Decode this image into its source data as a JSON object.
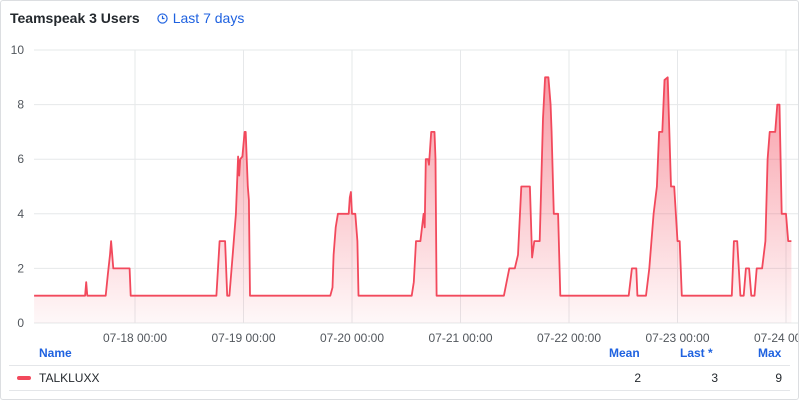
{
  "panel": {
    "title": "Teamspeak 3 Users",
    "time_range_label": "Last 7 days"
  },
  "legend": {
    "headers": {
      "name": "Name",
      "mean": "Mean",
      "last": "Last *",
      "max": "Max"
    },
    "series": [
      {
        "name": "TALKLUXX",
        "mean": "2",
        "last": "3",
        "max": "9",
        "color": "#f2495c"
      }
    ]
  },
  "chart_data": {
    "type": "area",
    "xlabels": [
      "07-18 00:00",
      "07-19 00:00",
      "07-20 00:00",
      "07-21 00:00",
      "07-22 00:00",
      "07-23 00:00",
      "07-24 00:00"
    ],
    "ylim": [
      0,
      10
    ],
    "yticks": [
      0,
      2,
      4,
      6,
      8,
      10
    ],
    "grid": true,
    "color": "#f2495c",
    "series": [
      {
        "name": "TALKLUXX",
        "points": [
          [
            -0.93,
            1
          ],
          [
            -0.46,
            1
          ],
          [
            -0.45,
            1.5
          ],
          [
            -0.44,
            1
          ],
          [
            -0.27,
            1
          ],
          [
            -0.25,
            1.8
          ],
          [
            -0.23,
            2.5
          ],
          [
            -0.22,
            3
          ],
          [
            -0.2,
            2
          ],
          [
            -0.05,
            2
          ],
          [
            -0.04,
            1
          ],
          [
            0.75,
            1
          ],
          [
            0.78,
            3
          ],
          [
            0.83,
            3
          ],
          [
            0.85,
            1
          ],
          [
            0.87,
            1
          ],
          [
            0.9,
            2.5
          ],
          [
            0.93,
            4
          ],
          [
            0.95,
            6.1
          ],
          [
            0.96,
            5.4
          ],
          [
            0.97,
            6
          ],
          [
            0.99,
            6.1
          ],
          [
            1.01,
            7
          ],
          [
            1.02,
            7
          ],
          [
            1.04,
            5
          ],
          [
            1.05,
            4.5
          ],
          [
            1.06,
            1
          ],
          [
            1.8,
            1
          ],
          [
            1.82,
            1.3
          ],
          [
            1.83,
            2.5
          ],
          [
            1.85,
            3.5
          ],
          [
            1.87,
            4
          ],
          [
            1.97,
            4
          ],
          [
            1.98,
            4.6
          ],
          [
            1.99,
            4.8
          ],
          [
            2.0,
            4
          ],
          [
            2.03,
            4
          ],
          [
            2.05,
            3
          ],
          [
            2.06,
            1
          ],
          [
            2.55,
            1
          ],
          [
            2.57,
            1.5
          ],
          [
            2.59,
            3
          ],
          [
            2.63,
            3
          ],
          [
            2.66,
            4
          ],
          [
            2.67,
            3.5
          ],
          [
            2.68,
            6
          ],
          [
            2.7,
            6
          ],
          [
            2.71,
            5.8
          ],
          [
            2.73,
            7
          ],
          [
            2.76,
            7
          ],
          [
            2.77,
            6
          ],
          [
            2.78,
            1
          ],
          [
            3.4,
            1
          ],
          [
            3.45,
            2
          ],
          [
            3.5,
            2
          ],
          [
            3.53,
            2.5
          ],
          [
            3.56,
            5
          ],
          [
            3.64,
            5
          ],
          [
            3.66,
            2.4
          ],
          [
            3.68,
            3
          ],
          [
            3.73,
            3
          ],
          [
            3.76,
            7.5
          ],
          [
            3.78,
            9
          ],
          [
            3.81,
            9
          ],
          [
            3.83,
            8
          ],
          [
            3.84,
            7
          ],
          [
            3.86,
            4
          ],
          [
            3.9,
            4
          ],
          [
            3.92,
            1
          ],
          [
            4.55,
            1
          ],
          [
            4.58,
            2
          ],
          [
            4.62,
            2
          ],
          [
            4.63,
            1
          ],
          [
            4.71,
            1
          ],
          [
            4.74,
            2
          ],
          [
            4.78,
            4
          ],
          [
            4.81,
            5
          ],
          [
            4.83,
            7
          ],
          [
            4.86,
            7
          ],
          [
            4.88,
            8.9
          ],
          [
            4.91,
            9
          ],
          [
            4.94,
            5
          ],
          [
            4.97,
            5
          ],
          [
            5.0,
            3
          ],
          [
            5.02,
            3
          ],
          [
            5.04,
            1
          ],
          [
            5.5,
            1
          ],
          [
            5.52,
            3
          ],
          [
            5.55,
            3
          ],
          [
            5.58,
            1
          ],
          [
            5.61,
            1
          ],
          [
            5.63,
            2
          ],
          [
            5.66,
            2
          ],
          [
            5.68,
            1
          ],
          [
            5.71,
            1
          ],
          [
            5.73,
            2
          ],
          [
            5.78,
            2
          ],
          [
            5.81,
            3
          ],
          [
            5.83,
            6
          ],
          [
            5.85,
            7
          ],
          [
            5.9,
            7
          ],
          [
            5.92,
            8
          ],
          [
            5.94,
            8
          ],
          [
            5.96,
            4
          ],
          [
            6.0,
            4
          ],
          [
            6.02,
            3
          ],
          [
            6.05,
            3
          ]
        ]
      }
    ]
  }
}
